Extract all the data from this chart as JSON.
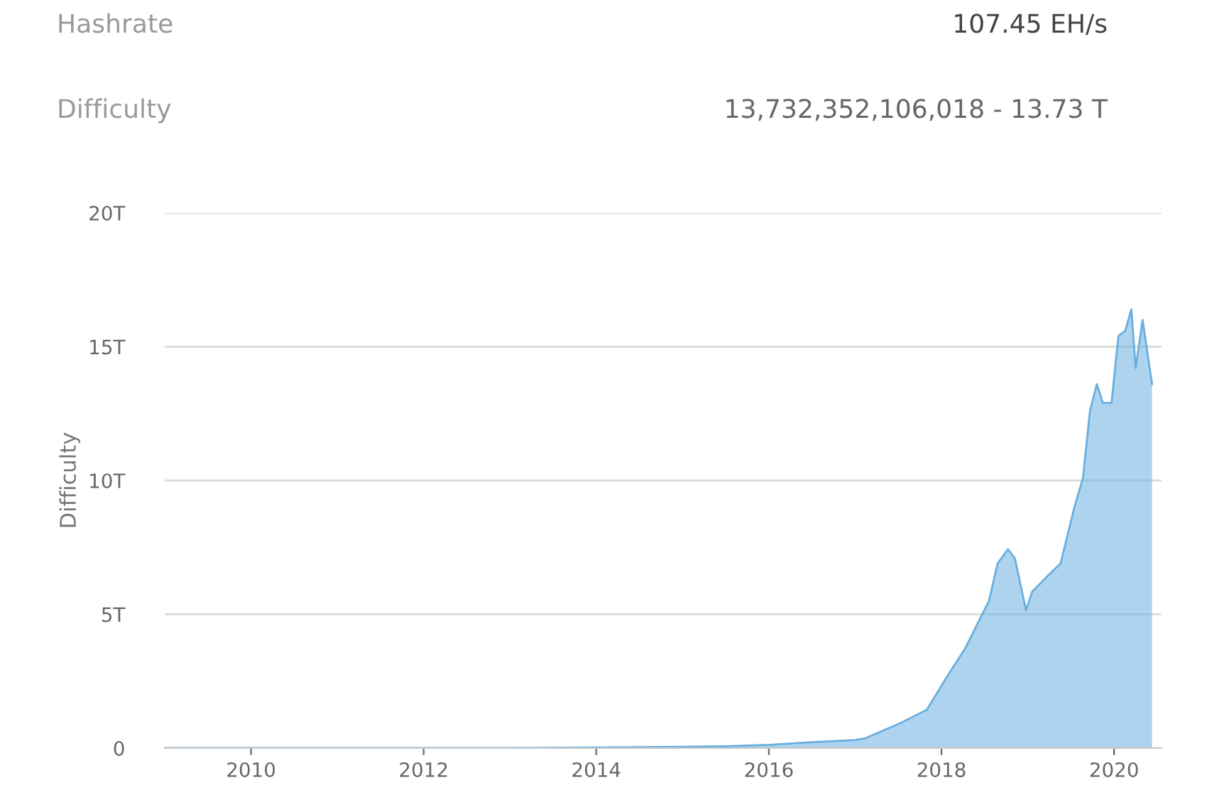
{
  "chart_data": {
    "type": "area",
    "ylabel": "Difficulty",
    "annotations": [
      "Hashrate",
      "107.45 EH/s",
      "Difficulty",
      "13,732,352,106,018 - 13.73 T"
    ],
    "series": [
      {
        "color": "#6aaee0",
        "x": [
          2009.0,
          2010.0,
          2011.0,
          2012.0,
          2013.0,
          2014.0,
          2015.0,
          2015.5,
          2016.0,
          2016.5,
          2017.0,
          2017.12,
          2017.5,
          2017.83,
          2018.06,
          2018.27,
          2018.47,
          2018.55,
          2018.65,
          2018.77,
          2018.85,
          2018.98,
          2019.05,
          2019.21,
          2019.38,
          2019.54,
          2019.64,
          2019.72,
          2019.8,
          2019.87,
          2019.97,
          2020.05,
          2020.13,
          2020.2,
          2020.25,
          2020.33,
          2020.44
        ],
        "values": [
          0,
          0,
          0,
          0,
          0,
          0.02,
          0.05,
          0.07,
          0.12,
          0.22,
          0.3,
          0.37,
          0.9,
          1.43,
          2.65,
          3.7,
          4.99,
          5.5,
          6.9,
          7.43,
          7.1,
          5.15,
          5.84,
          6.37,
          6.9,
          9.0,
          10.1,
          12.6,
          13.6,
          12.9,
          12.9,
          15.4,
          15.6,
          16.4,
          14.2,
          16.0,
          13.6
        ]
      }
    ],
    "xlim": [
      2009.0,
      2020.55
    ],
    "xticks": [
      2010,
      2012,
      2014,
      2016,
      2018,
      2020
    ],
    "ylim": [
      0,
      20
    ],
    "yticks": [
      0,
      {
        "value": 5,
        "label": "5T"
      },
      {
        "value": 10,
        "label": "10T"
      },
      {
        "value": 15,
        "label": "15T"
      },
      {
        "value": 20,
        "label": "20T"
      }
    ],
    "grid": "y"
  }
}
